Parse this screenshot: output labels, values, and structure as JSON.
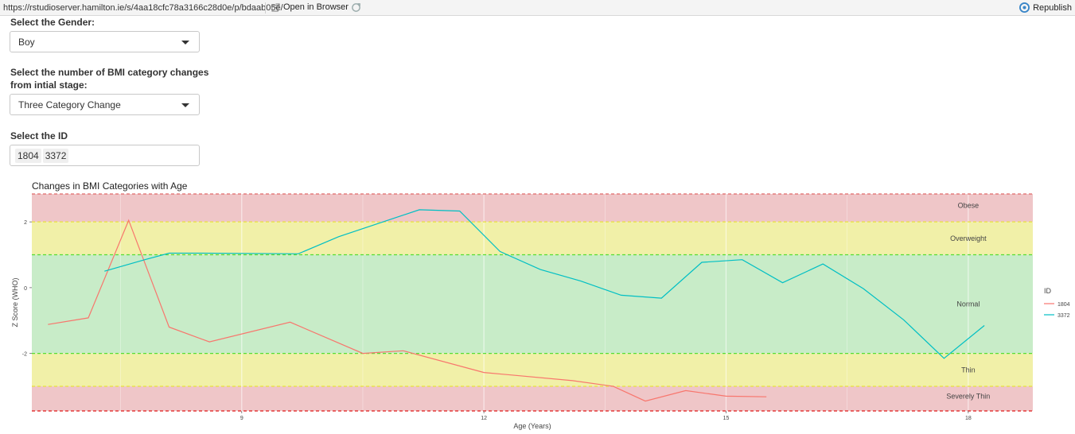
{
  "topbar": {
    "url": "https://rstudioserver.hamilton.ie/s/4aa18cfc78a3166c28d0e/p/bdaab05e/",
    "open_label": "Open in Browser",
    "republish_label": "Republish"
  },
  "form": {
    "gender_label": "Select the Gender:",
    "gender_value": "Boy",
    "changes_label_line1": "Select the number of BMI category changes",
    "changes_label_line2": "from intial stage:",
    "changes_value": "Three Category Change",
    "id_label": "Select the ID",
    "id_tags": [
      "1804",
      "3372"
    ]
  },
  "chart_data": {
    "type": "line",
    "title": "Changes in BMI Categories with Age",
    "xlabel": "Age (Years)",
    "ylabel": "Z Score (WHO)",
    "xlim": [
      6.4,
      18.8
    ],
    "ylim": [
      -3.75,
      2.85
    ],
    "xticks": [
      9,
      12,
      15,
      18
    ],
    "yticks": [
      2,
      0,
      -2
    ],
    "legend_title": "ID",
    "legend_position": "right",
    "bands": [
      {
        "label": "Obese",
        "from": 2,
        "to": 2.85,
        "color": "#efc6c8"
      },
      {
        "label": "Overweight",
        "from": 1,
        "to": 2,
        "color": "#f1f0a8"
      },
      {
        "label": "Normal",
        "from": -2,
        "to": 1,
        "color": "#c8ecc8"
      },
      {
        "label": "Thin",
        "from": -3,
        "to": -2,
        "color": "#f1f0a8"
      },
      {
        "label": "Severely Thin",
        "from": -3.75,
        "to": -3,
        "color": "#efc6c8"
      }
    ],
    "band_label_x": 18.0,
    "band_label_y": {
      "Obese": 2.5,
      "Overweight": 1.5,
      "Normal": -0.5,
      "Thin": -2.5,
      "Severely Thin": -3.3
    },
    "reference_lines": [
      {
        "y": 2.85,
        "color": "#e06a6a"
      },
      {
        "y": 2,
        "color": "#e7e23c"
      },
      {
        "y": 1,
        "color": "#55dd33"
      },
      {
        "y": -2,
        "color": "#55dd33"
      },
      {
        "y": -3,
        "color": "#e7e23c"
      },
      {
        "y": -3.75,
        "color": "#e01a1a"
      }
    ],
    "series": [
      {
        "name": "1804",
        "color": "#f8766d",
        "x": [
          6.6,
          7.1,
          7.6,
          8.1,
          8.6,
          9.6,
          10.5,
          11.0,
          12.0,
          13.1,
          13.6,
          14.0,
          14.5,
          15.0,
          15.5
        ],
        "y": [
          -1.12,
          -0.92,
          2.05,
          -1.2,
          -1.65,
          -1.05,
          -2.0,
          -1.92,
          -2.58,
          -2.83,
          -3.0,
          -3.45,
          -3.13,
          -3.3,
          -3.32
        ]
      },
      {
        "name": "3372",
        "color": "#00bfc4",
        "x": [
          7.3,
          7.8,
          8.1,
          8.5,
          9.7,
          10.2,
          11.2,
          11.7,
          12.2,
          12.7,
          13.2,
          13.7,
          14.2,
          14.7,
          15.2,
          15.7,
          16.2,
          16.7,
          17.2,
          17.7,
          18.2
        ],
        "y": [
          0.5,
          0.85,
          1.05,
          1.05,
          1.03,
          1.55,
          2.37,
          2.33,
          1.1,
          0.55,
          0.2,
          -0.23,
          -0.32,
          0.77,
          0.85,
          0.15,
          0.72,
          -0.03,
          -0.98,
          -2.15,
          -1.15
        ]
      }
    ]
  }
}
